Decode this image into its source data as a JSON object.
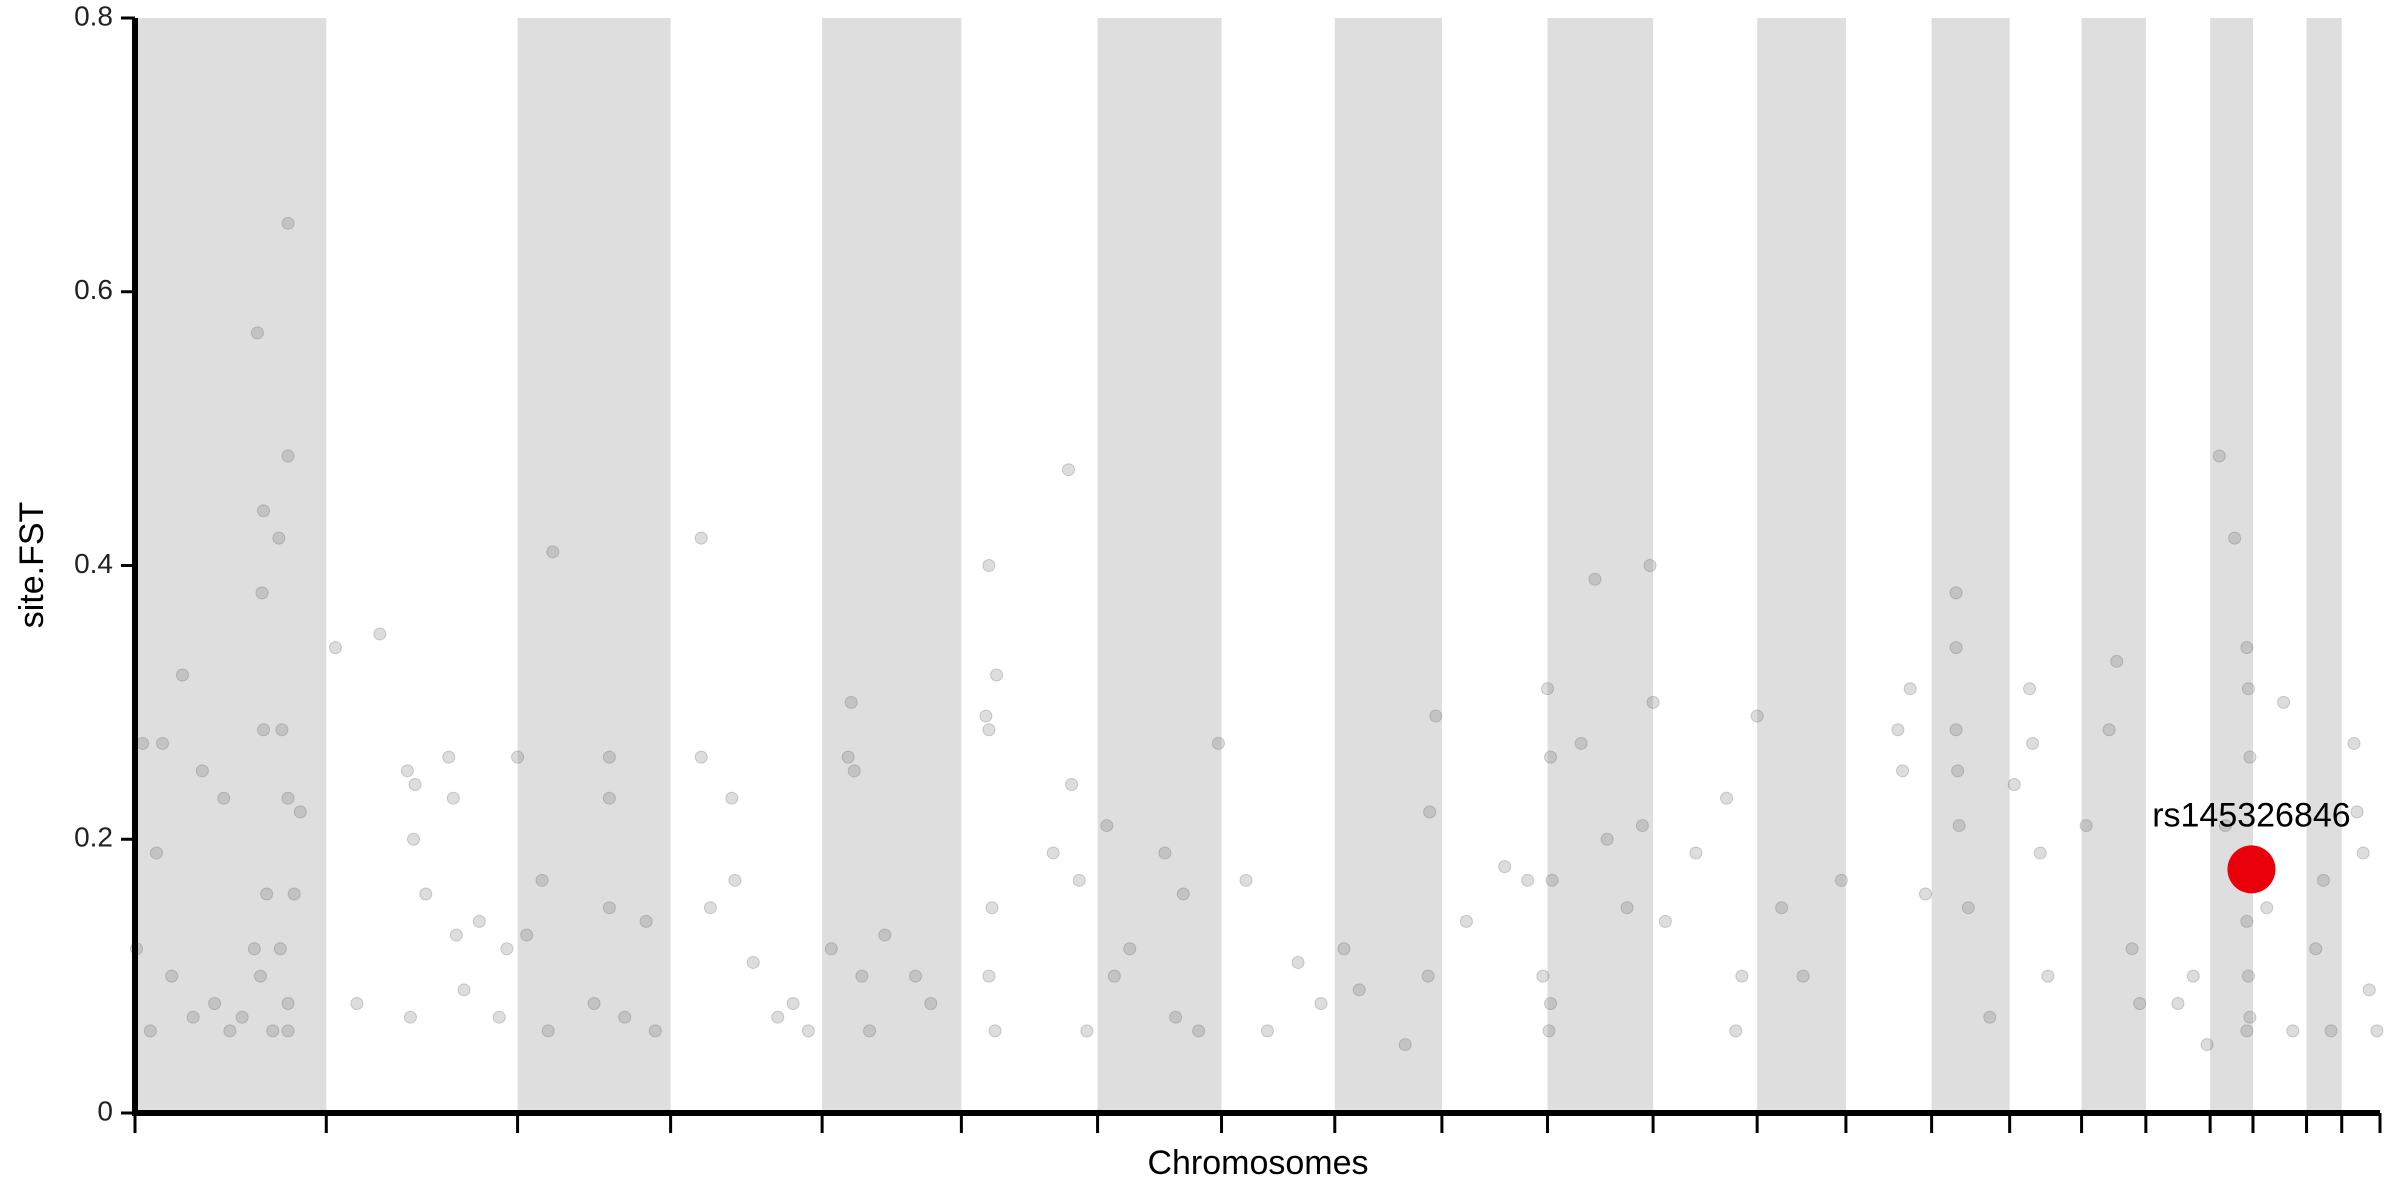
{
  "chart_data": {
    "type": "scatter",
    "xlabel": "Chromosomes",
    "ylabel": "site.FST",
    "xlim": [
      0,
      1467
    ],
    "xticks": [
      0,
      125,
      250,
      350,
      449,
      540,
      629,
      710,
      784,
      854,
      923,
      992,
      1060,
      1118,
      1174,
      1225,
      1272,
      1314,
      1356,
      1384,
      1419,
      1442,
      1467
    ],
    "ylim": [
      0,
      0.8
    ],
    "yticks": [
      0,
      0.2,
      0.4,
      0.6,
      0.8
    ],
    "band_color": "#dedede",
    "color": "#666666",
    "x": [
      1,
      5,
      10,
      14,
      18,
      24,
      31,
      38,
      44,
      52,
      58,
      62,
      70,
      78,
      80,
      82,
      84,
      83,
      84,
      86,
      94,
      96,
      100,
      100,
      100,
      100,
      100,
      104,
      108,
      90,
      95,
      131,
      145,
      160,
      178,
      180,
      182,
      183,
      190,
      205,
      210,
      208,
      215,
      225,
      238,
      243,
      250,
      256,
      266,
      273,
      270,
      300,
      310,
      310,
      310,
      320,
      334,
      340,
      370,
      370,
      376,
      390,
      392,
      404,
      420,
      430,
      440,
      455,
      466,
      468,
      470,
      475,
      480,
      490,
      520,
      510,
      556,
      558,
      558,
      560,
      562,
      563,
      558,
      600,
      610,
      612,
      617,
      622,
      635,
      640,
      650,
      673,
      680,
      685,
      695,
      708,
      726,
      740,
      760,
      775,
      790,
      800,
      830,
      846,
      850,
      845,
      870,
      895,
      910,
      920,
      923,
      925,
      926,
      925,
      924,
      945,
      954,
      962,
      975,
      985,
      990,
      992,
      1000,
      1020,
      1040,
      1050,
      1046,
      1060,
      1076,
      1090,
      1115,
      1152,
      1155,
      1160,
      1170,
      1190,
      1190,
      1190,
      1191,
      1192,
      1198,
      1212,
      1228,
      1238,
      1240,
      1245,
      1250,
      1275,
      1290,
      1295,
      1305,
      1310,
      1335,
      1345,
      1354,
      1362,
      1366,
      1372,
      1380,
      1381,
      1382,
      1380,
      1381,
      1382,
      1380,
      1393,
      1404,
      1410,
      1425,
      1430,
      1435,
      1450,
      1452,
      1456,
      1460,
      1465
    ],
    "values": [
      0.12,
      0.27,
      0.06,
      0.19,
      0.27,
      0.1,
      0.32,
      0.07,
      0.25,
      0.08,
      0.23,
      0.06,
      0.07,
      0.12,
      0.57,
      0.1,
      0.44,
      0.38,
      0.28,
      0.16,
      0.42,
      0.28,
      0.65,
      0.48,
      0.23,
      0.08,
      0.06,
      0.16,
      0.22,
      0.06,
      0.12,
      0.34,
      0.08,
      0.35,
      0.25,
      0.07,
      0.2,
      0.24,
      0.16,
      0.26,
      0.13,
      0.23,
      0.09,
      0.14,
      0.07,
      0.12,
      0.26,
      0.13,
      0.17,
      0.41,
      0.06,
      0.08,
      0.26,
      0.23,
      0.15,
      0.07,
      0.14,
      0.06,
      0.42,
      0.26,
      0.15,
      0.23,
      0.17,
      0.11,
      0.07,
      0.08,
      0.06,
      0.12,
      0.26,
      0.3,
      0.25,
      0.1,
      0.06,
      0.13,
      0.08,
      0.1,
      0.29,
      0.4,
      0.28,
      0.15,
      0.06,
      0.32,
      0.1,
      0.19,
      0.47,
      0.24,
      0.17,
      0.06,
      0.21,
      0.1,
      0.12,
      0.19,
      0.07,
      0.16,
      0.06,
      0.27,
      0.17,
      0.06,
      0.11,
      0.08,
      0.12,
      0.09,
      0.05,
      0.22,
      0.29,
      0.1,
      0.14,
      0.18,
      0.17,
      0.1,
      0.31,
      0.26,
      0.17,
      0.08,
      0.06,
      0.27,
      0.39,
      0.2,
      0.15,
      0.21,
      0.4,
      0.3,
      0.14,
      0.19,
      0.23,
      0.1,
      0.06,
      0.29,
      0.15,
      0.1,
      0.17,
      0.28,
      0.25,
      0.31,
      0.16,
      0.38,
      0.34,
      0.28,
      0.25,
      0.21,
      0.15,
      0.07,
      0.24,
      0.31,
      0.27,
      0.19,
      0.1,
      0.21,
      0.28,
      0.33,
      0.12,
      0.08,
      0.08,
      0.1,
      0.05,
      0.48,
      0.21,
      0.42,
      0.34,
      0.31,
      0.26,
      0.14,
      0.1,
      0.07,
      0.06,
      0.15,
      0.3,
      0.06,
      0.12,
      0.17,
      0.06,
      0.27,
      0.22,
      0.19,
      0.09,
      0.06
    ],
    "highlight": {
      "x": 1383,
      "value": 0.178,
      "label": "rs145326846",
      "color": "#e8000b"
    }
  }
}
